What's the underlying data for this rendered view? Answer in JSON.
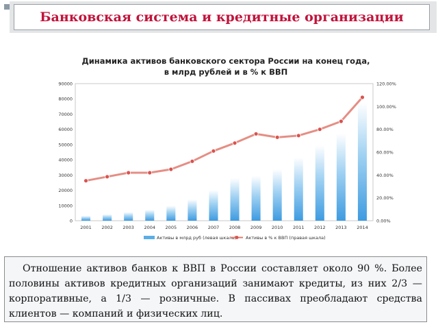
{
  "slide": {
    "title": "Банковская система и кредитные организации",
    "paragraph": "Отношение активов банков к ВВП в России составляет около 90 %. Более половины активов кредитных организаций занимают кредиты, из них 2/3 — корпоративные, а 1/3 — розничные. В пассивах преобладают средства клиентов — компаний и физических лиц."
  },
  "colors": {
    "title_text": "#c0143c",
    "bars": "#5aaee6",
    "line": "#e07a6e",
    "markers": "#d9534f"
  },
  "chart_data": {
    "type": "bar",
    "title_lines": [
      "Динамика активов банковского сектора России на конец года,",
      "в млрд рублей и в % к ВВП"
    ],
    "categories": [
      "2001",
      "2002",
      "2003",
      "2004",
      "2005",
      "2006",
      "2007",
      "2008",
      "2009",
      "2010",
      "2011",
      "2012",
      "2013",
      "2014"
    ],
    "series": [
      {
        "name": "Активы в млрд руб (левая шкала)",
        "type": "bar",
        "axis": "left",
        "values": [
          3200,
          4200,
          5600,
          7200,
          9800,
          14000,
          20100,
          28000,
          29400,
          33800,
          41600,
          49500,
          57400,
          77600
        ]
      },
      {
        "name": "Активы в % к ВВП (правая шкала)",
        "type": "line",
        "axis": "right",
        "values": [
          35.0,
          38.5,
          42.0,
          42.0,
          45.0,
          52.0,
          61.0,
          68.0,
          76.0,
          73.0,
          74.5,
          80.0,
          87.0,
          108.0
        ]
      }
    ],
    "y_left": {
      "range": [
        0,
        90000
      ],
      "ticks": [
        "0",
        "10000",
        "20000",
        "30000",
        "40000",
        "50000",
        "60000",
        "70000",
        "80000",
        "90000"
      ]
    },
    "y_right": {
      "range": [
        0,
        120
      ],
      "ticks": [
        "0.00%",
        "20.00%",
        "40.00%",
        "60.00%",
        "80.00%",
        "100.00%",
        "120.00%"
      ]
    },
    "grid": false,
    "legend": "bottom"
  }
}
